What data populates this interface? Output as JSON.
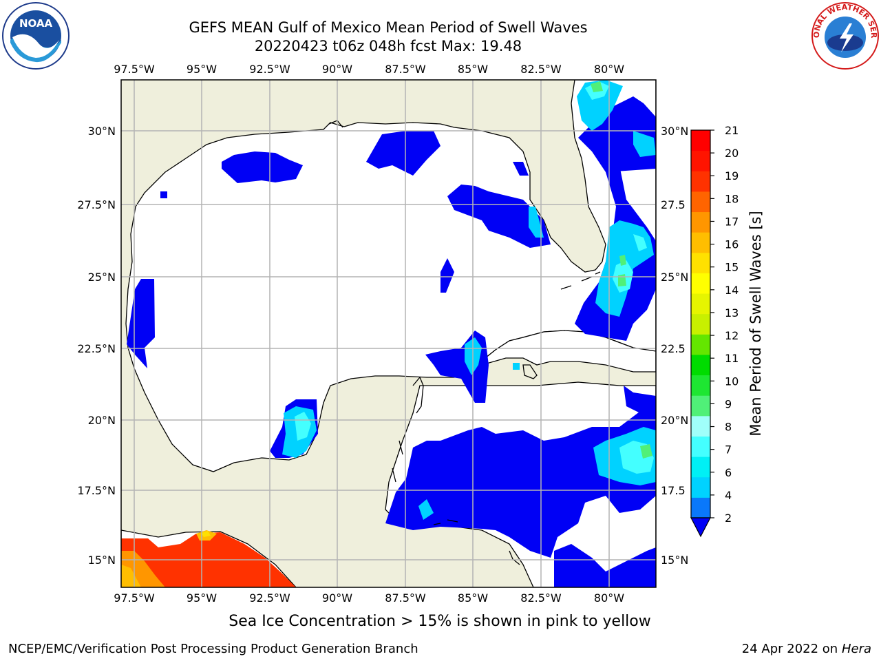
{
  "header": {
    "title_line1": "GEFS MEAN Gulf of Mexico Mean Period of Swell Waves",
    "title_line2": "20220423 t06z 048h fcst   Max: 19.48"
  },
  "logos": {
    "left": {
      "name": "noaa-logo",
      "text": "NOAA"
    },
    "right": {
      "name": "nws-logo",
      "text": "NATIONAL WEATHER SERVICE"
    }
  },
  "map": {
    "lon_labels": [
      "97.5°W",
      "95°W",
      "92.5°W",
      "90°W",
      "87.5°W",
      "85°W",
      "82.5°W",
      "80°W"
    ],
    "lat_labels_left": [
      "30°N",
      "27.5°N",
      "25°N",
      "22.5°N",
      "20°N",
      "17.5°N",
      "15°N"
    ],
    "lat_labels_right": [
      "30°N",
      "27.5",
      "25°N",
      "22.5",
      "20°N",
      "17.5",
      "15°N"
    ],
    "colors": {
      "land": "#efefdc",
      "ocean": "#ffffff",
      "grid": "#b4b4b4",
      "coast": "#000000"
    }
  },
  "colorbar": {
    "label": "Mean Period of Swell Waves [s]",
    "ticks": [
      "2",
      "4",
      "6",
      "7",
      "8",
      "9",
      "10",
      "11",
      "12",
      "13",
      "14",
      "15",
      "16",
      "17",
      "18",
      "19",
      "20",
      "21"
    ],
    "colors": [
      "#0a78fa",
      "#00d2ff",
      "#00f0f5",
      "#44ffff",
      "#a0fffa",
      "#50f078",
      "#1ee632",
      "#00dc00",
      "#64e600",
      "#c8f000",
      "#e6f500",
      "#ffff00",
      "#ffe100",
      "#ffbe00",
      "#ff9600",
      "#ff6400",
      "#ff3200",
      "#ff1400",
      "#ff0000"
    ],
    "extend_color": "#0000f5"
  },
  "subtitle": "Sea Ice Concentration > 15% is shown in pink to yellow",
  "footer": {
    "left": "NCEP/EMC/Verification Post Processing Product Generation Branch",
    "right_date": "24 Apr 2022 on ",
    "right_host": "Hera"
  }
}
